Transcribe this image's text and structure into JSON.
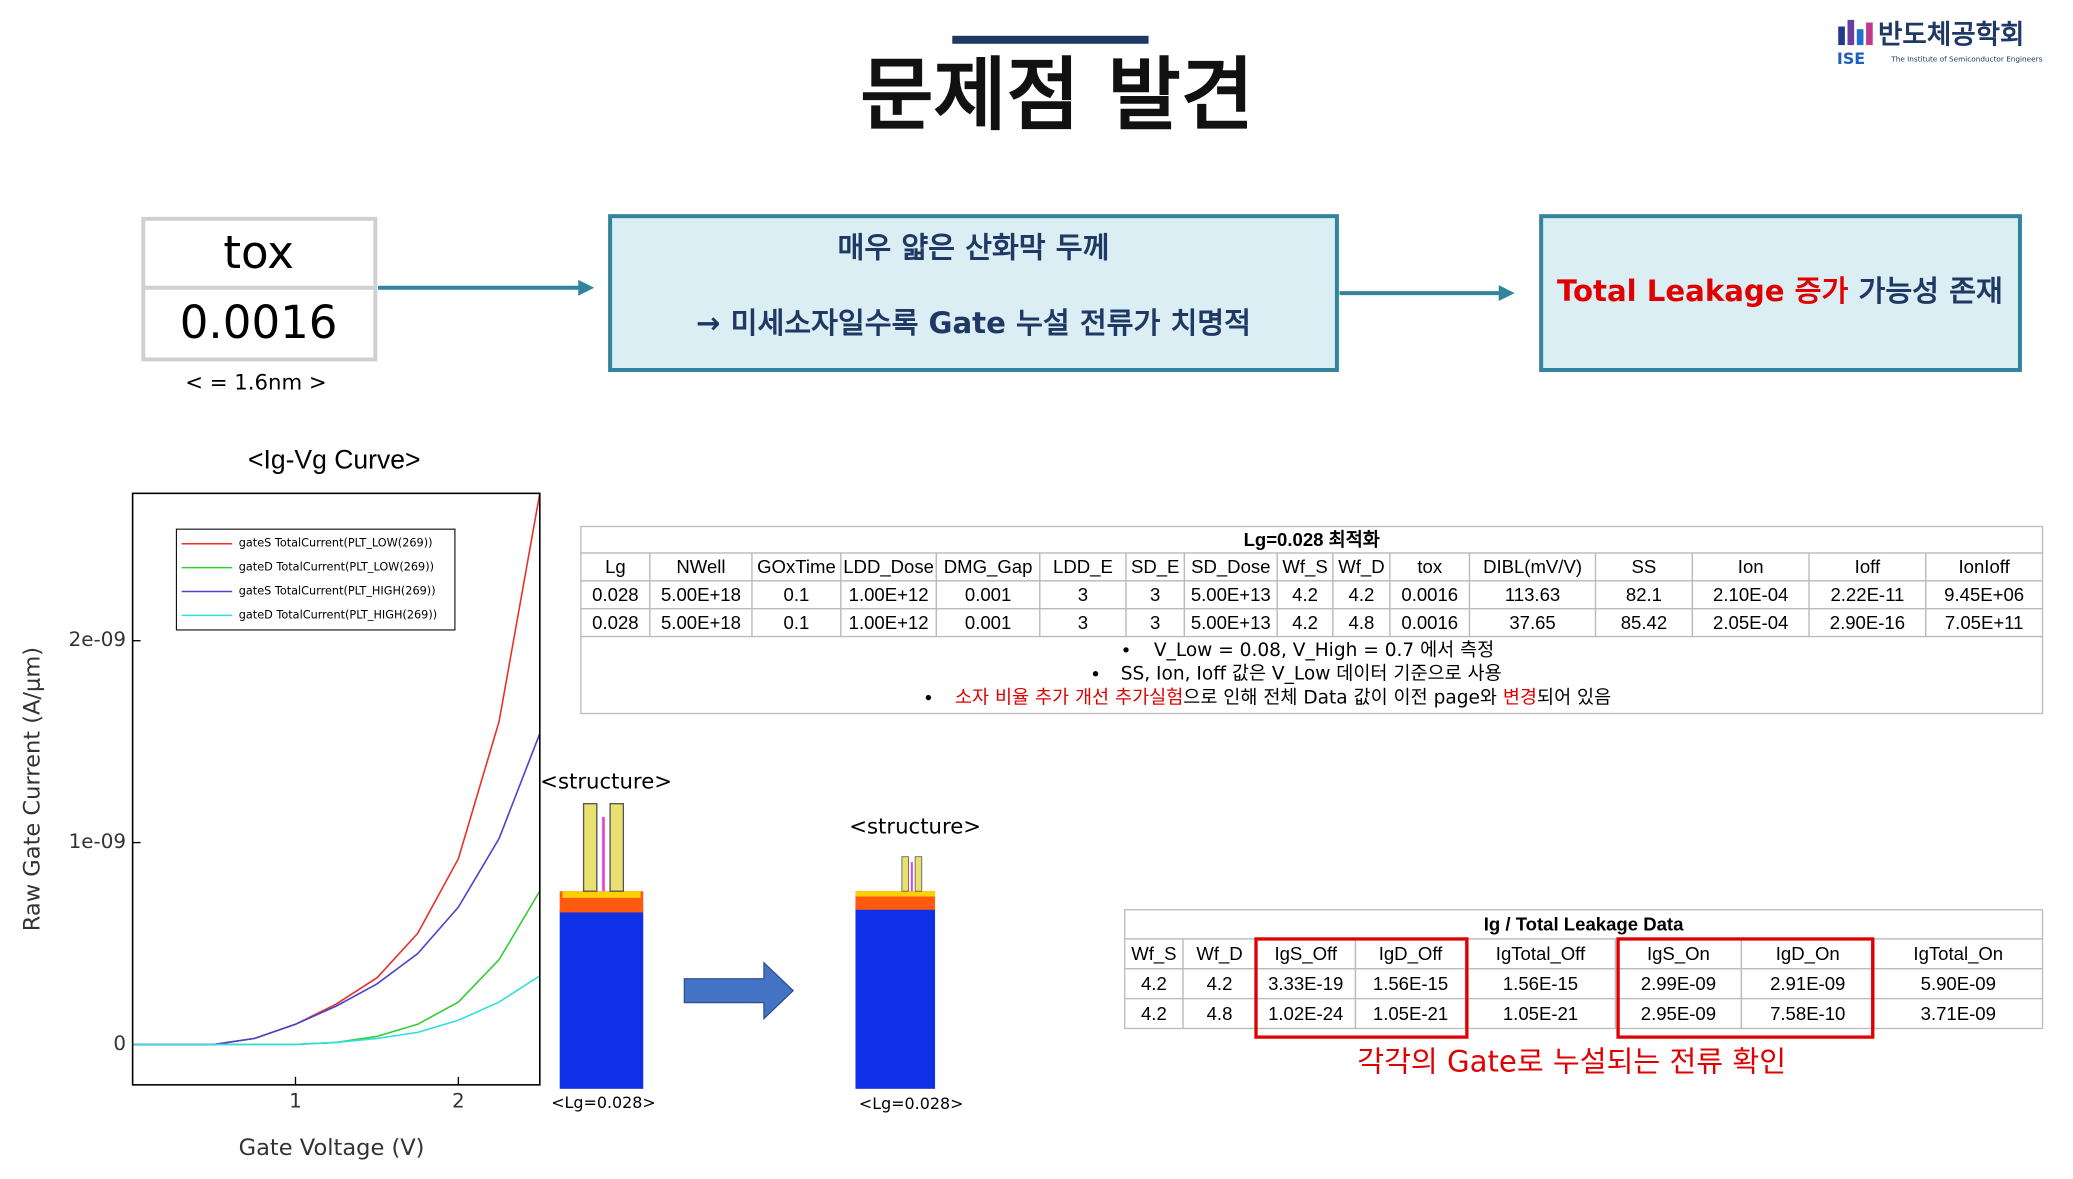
{
  "header": {
    "title": "문제점 발견",
    "logo": {
      "name": "반도체공학회",
      "abbr": "ISE",
      "subtitle": "The Institute of Semiconductor Engineers"
    }
  },
  "tox_box": {
    "label": "tox",
    "value": "0.0016",
    "note": "< = 1.6nm >"
  },
  "flow": {
    "middle": [
      "매우 얇은 산화막 두께",
      "→ 미세소자일수록 Gate 누설 전류가 치명적"
    ],
    "result": [
      {
        "text": "Total Leakage 증가",
        "color": "#e00000"
      },
      {
        "text": " 가능성 존재",
        "color": "#1f3864"
      }
    ]
  },
  "chart_data": {
    "type": "line",
    "title": "<Ig-Vg Curve>",
    "xlabel": "Gate Voltage (V)",
    "ylabel": "Raw Gate Current (A/μm)",
    "x": [
      0,
      0.5,
      0.75,
      1,
      1.25,
      1.5,
      1.75,
      2,
      2.25,
      2.5
    ],
    "series": [
      {
        "name": "gateS TotalCurrent(PLT_LOW(269))",
        "color": "#e8302a",
        "values": [
          0,
          0,
          3e-11,
          1e-10,
          2e-10,
          3.3e-10,
          5.5e-10,
          9.2e-10,
          1.6e-09,
          2.73e-09
        ]
      },
      {
        "name": "gateD TotalCurrent(PLT_LOW(269))",
        "color": "#33cc33",
        "values": [
          0,
          0,
          0,
          0,
          1e-11,
          4e-11,
          1e-10,
          2.1e-10,
          4.2e-10,
          7.6e-10
        ]
      },
      {
        "name": "gateS TotalCurrent(PLT_HIGH(269))",
        "color": "#4b44c8",
        "values": [
          0,
          0,
          3e-11,
          1e-10,
          1.9e-10,
          3e-10,
          4.5e-10,
          6.8e-10,
          1.02e-09,
          1.54e-09
        ]
      },
      {
        "name": "gateD TotalCurrent(PLT_HIGH(269))",
        "color": "#33dddd",
        "values": [
          0,
          0,
          0,
          0,
          1e-11,
          3e-11,
          6e-11,
          1.2e-10,
          2.1e-10,
          3.4e-10
        ]
      }
    ],
    "xlim": [
      0,
      2.5
    ],
    "xticks": [
      1,
      2
    ],
    "ylim": [
      -2e-10,
      2.73e-09
    ],
    "yticks": [
      0,
      {
        "value": 1e-09,
        "label": "1e-09"
      },
      {
        "value": 2e-09,
        "label": "2e-09"
      }
    ],
    "legend": "upper-left",
    "grid": false
  },
  "table1": {
    "title": "Lg=0.028 최적화",
    "header": [
      "Lg",
      "NWell",
      "GOxTime",
      "LDD_Dose",
      "DMG_Gap",
      "LDD_E",
      "SD_E",
      "SD_Dose",
      "Wf_S",
      "Wf_D",
      "tox",
      "DIBL(mV/V)",
      "SS",
      "Ion",
      "Ioff",
      "IonIoff"
    ],
    "rows": [
      [
        "0.028",
        "5.00E+18",
        "0.1",
        "1.00E+12",
        "0.001",
        "3",
        "3",
        "5.00E+13",
        "4.2",
        "4.2",
        "0.0016",
        "113.63",
        "82.1",
        "2.10E-04",
        "2.22E-11",
        "9.45E+06"
      ],
      [
        "0.028",
        "5.00E+18",
        "0.1",
        "1.00E+12",
        "0.001",
        "3",
        "3",
        "5.00E+13",
        "4.2",
        "4.8",
        "0.0016",
        "37.65",
        "85.42",
        "2.05E-04",
        "2.90E-16",
        "7.05E+11"
      ]
    ],
    "notes": [
      [
        {
          "text": "V_Low = 0.08, V_High = 0.7 에서 측정",
          "color": "#000000"
        }
      ],
      [
        {
          "text": "SS, Ion, Ioff 값은 V_Low 데이터 기준으로 사용",
          "color": "#000000"
        }
      ],
      [
        {
          "text": "소자 비율 추가 개선 추가실험",
          "color": "#e00000"
        },
        {
          "text": "으로 인해 전체 Data 값이 이전 page와 ",
          "color": "#000000"
        },
        {
          "text": "변경",
          "color": "#e00000"
        },
        {
          "text": "되어 있음",
          "color": "#000000"
        }
      ]
    ]
  },
  "structures": [
    {
      "title": "<structure>",
      "caption": "<Lg=0.028>"
    },
    {
      "title": "<structure>",
      "caption": "<Lg=0.028>"
    }
  ],
  "table2": {
    "title": "Ig / Total Leakage Data",
    "header": [
      "Wf_S",
      "Wf_D",
      "IgS_Off",
      "IgD_Off",
      "IgTotal_Off",
      "IgS_On",
      "IgD_On",
      "IgTotal_On"
    ],
    "rows": [
      [
        "4.2",
        "4.2",
        "3.33E-19",
        "1.56E-15",
        "1.56E-15",
        "2.99E-09",
        "2.91E-09",
        "5.90E-09"
      ],
      [
        "4.2",
        "4.8",
        "1.02E-24",
        "1.05E-21",
        "1.05E-21",
        "2.95E-09",
        "7.58E-10",
        "3.71E-09"
      ]
    ],
    "note": "각각의 Gate로 누설되는 전류 확인"
  }
}
